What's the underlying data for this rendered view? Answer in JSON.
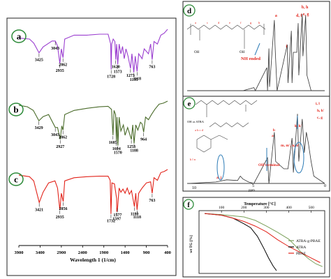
{
  "panel_labels": {
    "a": "a",
    "b": "b",
    "c": "c",
    "d": "d",
    "e": "e",
    "f": "f"
  },
  "chart_data": [
    {
      "type": "line",
      "panel": "a-c",
      "xlabel": "Wavelength 1 (1/cm)",
      "xlim": [
        3900,
        400
      ],
      "x_ticks": [
        "3900",
        "3400",
        "2900",
        "2400",
        "1900",
        "1400",
        "900",
        "400"
      ],
      "series": [
        {
          "name": "a",
          "color": "#9b3fd0",
          "points": [
            [
              3900,
              0.18
            ],
            [
              3650,
              0.2
            ],
            [
              3550,
              0.28
            ],
            [
              3425,
              0.48
            ],
            [
              3330,
              0.36
            ],
            [
              3120,
              0.24
            ],
            [
              3043,
              0.24
            ],
            [
              2990,
              0.34
            ],
            [
              2935,
              0.7
            ],
            [
              2900,
              0.4
            ],
            [
              2862,
              0.58
            ],
            [
              2820,
              0.2
            ],
            [
              2600,
              0.12
            ],
            [
              2300,
              0.12
            ],
            [
              2000,
              0.1
            ],
            [
              1800,
              0.1
            ],
            [
              1740,
              0.3
            ],
            [
              1728,
              0.82
            ],
            [
              1715,
              0.3
            ],
            [
              1680,
              0.2
            ],
            [
              1640,
              0.25
            ],
            [
              1620,
              0.62
            ],
            [
              1600,
              0.3
            ],
            [
              1573,
              0.72
            ],
            [
              1540,
              0.3
            ],
            [
              1500,
              0.5
            ],
            [
              1460,
              0.35
            ],
            [
              1420,
              0.6
            ],
            [
              1380,
              0.4
            ],
            [
              1330,
              0.55
            ],
            [
              1273,
              0.8
            ],
            [
              1240,
              0.5
            ],
            [
              1195,
              0.88
            ],
            [
              1160,
              0.55
            ],
            [
              1118,
              0.86
            ],
            [
              1080,
              0.5
            ],
            [
              1000,
              0.6
            ],
            [
              950,
              0.4
            ],
            [
              900,
              0.45
            ],
            [
              850,
              0.5
            ],
            [
              800,
              0.3
            ],
            [
              763,
              0.62
            ],
            [
              720,
              0.25
            ],
            [
              640,
              0.3
            ],
            [
              560,
              0.12
            ],
            [
              480,
              0.08
            ],
            [
              400,
              0.0
            ]
          ],
          "annotations": [
            {
              "label": "3425",
              "x": 3425
            },
            {
              "label": "3043",
              "x": 3043
            },
            {
              "label": "2935",
              "x": 2935
            },
            {
              "label": "2862",
              "x": 2862
            },
            {
              "label": "1728",
              "x": 1728
            },
            {
              "label": "1620",
              "x": 1620
            },
            {
              "label": "1573",
              "x": 1573
            },
            {
              "label": "1273",
              "x": 1273
            },
            {
              "label": "1195",
              "x": 1195
            },
            {
              "label": "1118",
              "x": 1118
            },
            {
              "label": "763",
              "x": 763
            }
          ]
        },
        {
          "name": "b",
          "color": "#4a6b2a",
          "points": [
            [
              3900,
              0.12
            ],
            [
              3700,
              0.15
            ],
            [
              3560,
              0.22
            ],
            [
              3429,
              0.42
            ],
            [
              3330,
              0.34
            ],
            [
              3200,
              0.3
            ],
            [
              3043,
              0.55
            ],
            [
              2990,
              0.55
            ],
            [
              2927,
              0.78
            ],
            [
              2890,
              0.52
            ],
            [
              2862,
              0.6
            ],
            [
              2820,
              0.3
            ],
            [
              2600,
              0.22
            ],
            [
              2300,
              0.18
            ],
            [
              2000,
              0.15
            ],
            [
              1800,
              0.14
            ],
            [
              1720,
              0.2
            ],
            [
              1685,
              0.7
            ],
            [
              1660,
              0.22
            ],
            [
              1625,
              0.3
            ],
            [
              1604,
              0.82
            ],
            [
              1590,
              0.35
            ],
            [
              1570,
              0.9
            ],
            [
              1540,
              0.35
            ],
            [
              1500,
              0.62
            ],
            [
              1440,
              0.5
            ],
            [
              1400,
              0.7
            ],
            [
              1340,
              0.55
            ],
            [
              1290,
              0.68
            ],
            [
              1253,
              0.78
            ],
            [
              1220,
              0.5
            ],
            [
              1188,
              0.86
            ],
            [
              1150,
              0.5
            ],
            [
              1100,
              0.6
            ],
            [
              1040,
              0.45
            ],
            [
              1000,
              0.48
            ],
            [
              964,
              0.64
            ],
            [
              920,
              0.35
            ],
            [
              850,
              0.4
            ],
            [
              780,
              0.3
            ],
            [
              700,
              0.2
            ],
            [
              600,
              0.1
            ],
            [
              500,
              0.08
            ],
            [
              400,
              0.04
            ]
          ],
          "annotations": [
            {
              "label": "3429",
              "x": 3429
            },
            {
              "label": "3043",
              "x": 3043
            },
            {
              "label": "2927",
              "x": 2927
            },
            {
              "label": "2862",
              "x": 2862
            },
            {
              "label": "1685",
              "x": 1685
            },
            {
              "label": "1604",
              "x": 1604
            },
            {
              "label": "1570",
              "x": 1570
            },
            {
              "label": "1253",
              "x": 1253
            },
            {
              "label": "1188",
              "x": 1188
            },
            {
              "label": "964",
              "x": 964
            }
          ]
        },
        {
          "name": "c",
          "color": "#e2231a",
          "points": [
            [
              3900,
              0.15
            ],
            [
              3650,
              0.18
            ],
            [
              3550,
              0.26
            ],
            [
              3421,
              0.68
            ],
            [
              3330,
              0.48
            ],
            [
              3200,
              0.3
            ],
            [
              3050,
              0.26
            ],
            [
              2990,
              0.4
            ],
            [
              2935,
              0.82
            ],
            [
              2900,
              0.5
            ],
            [
              2856,
              0.66
            ],
            [
              2820,
              0.26
            ],
            [
              2600,
              0.2
            ],
            [
              2300,
              0.18
            ],
            [
              2000,
              0.17
            ],
            [
              1800,
              0.17
            ],
            [
              1750,
              0.25
            ],
            [
              1732,
              0.9
            ],
            [
              1710,
              0.3
            ],
            [
              1650,
              0.32
            ],
            [
              1600,
              0.6
            ],
            [
              1597,
              0.86
            ],
            [
              1577,
              0.78
            ],
            [
              1540,
              0.4
            ],
            [
              1500,
              0.48
            ],
            [
              1450,
              0.42
            ],
            [
              1400,
              0.5
            ],
            [
              1350,
              0.4
            ],
            [
              1300,
              0.52
            ],
            [
              1250,
              0.45
            ],
            [
              1180,
              0.76
            ],
            [
              1150,
              0.5
            ],
            [
              1118,
              0.82
            ],
            [
              1080,
              0.5
            ],
            [
              1000,
              0.4
            ],
            [
              900,
              0.3
            ],
            [
              800,
              0.28
            ],
            [
              763,
              0.5
            ],
            [
              720,
              0.2
            ],
            [
              640,
              0.25
            ],
            [
              560,
              0.1
            ],
            [
              480,
              0.08
            ],
            [
              400,
              0.04
            ]
          ],
          "annotations": [
            {
              "label": "3421",
              "x": 3421
            },
            {
              "label": "2935",
              "x": 2935
            },
            {
              "label": "2856",
              "x": 2856
            },
            {
              "label": "1732",
              "x": 1732
            },
            {
              "label": "1597",
              "x": 1597
            },
            {
              "label": "1577",
              "x": 1577
            },
            {
              "label": "1180",
              "x": 1180
            },
            {
              "label": "1118",
              "x": 1118
            },
            {
              "label": "763",
              "x": 763
            }
          ]
        }
      ]
    },
    {
      "type": "line",
      "panel": "d",
      "xlabel": "",
      "x_ticks": [],
      "series": [
        {
          "name": "d",
          "color": "#333333",
          "points": [
            [
              10,
              0
            ],
            [
              6.0,
              0
            ],
            [
              5.2,
              0.04
            ],
            [
              5.1,
              0.0
            ],
            [
              4.25,
              0.3
            ],
            [
              4.2,
              0.0
            ],
            [
              4.1,
              0.55
            ],
            [
              4.05,
              0.05
            ],
            [
              3.7,
              0.92
            ],
            [
              3.65,
              0.6
            ],
            [
              3.5,
              0.0
            ],
            [
              2.75,
              0.6
            ],
            [
              2.7,
              0.1
            ],
            [
              2.45,
              0.78
            ],
            [
              2.4,
              0.1
            ],
            [
              2.3,
              0.5
            ],
            [
              2.05,
              0.5
            ],
            [
              1.95,
              0.88
            ],
            [
              1.9,
              0.2
            ],
            [
              1.65,
              1.0
            ],
            [
              1.6,
              0.45
            ],
            [
              1.4,
              0.98
            ],
            [
              1.3,
              0.2
            ],
            [
              1.0,
              0.0
            ],
            [
              0,
              0
            ]
          ]
        }
      ],
      "annotations": [
        "a",
        "i",
        "d, f",
        "b, h",
        "e, g",
        "NH ended"
      ]
    },
    {
      "type": "line",
      "panel": "e",
      "xlabel": "ppm",
      "x_ticks": [
        "10",
        "5"
      ],
      "series": [
        {
          "name": "e",
          "color": "#333333",
          "points": [
            [
              10,
              0
            ],
            [
              8,
              0.02
            ],
            [
              7.2,
              0.05
            ],
            [
              6.4,
              0.04
            ],
            [
              6.2,
              0.1
            ],
            [
              6.0,
              0.06
            ],
            [
              5.6,
              0.02
            ],
            [
              5.2,
              0.0
            ],
            [
              4.2,
              0.35
            ],
            [
              4.1,
              0.0
            ],
            [
              3.7,
              0.7
            ],
            [
              3.6,
              0.3
            ],
            [
              3.0,
              0.2
            ],
            [
              2.7,
              0.2
            ],
            [
              2.4,
              0.62
            ],
            [
              2.3,
              0.15
            ],
            [
              2.0,
              0.95
            ],
            [
              1.9,
              0.3
            ],
            [
              1.65,
              0.88
            ],
            [
              1.5,
              0.42
            ],
            [
              1.35,
              0.7
            ],
            [
              1.2,
              0.55
            ],
            [
              1.0,
              0.3
            ],
            [
              0.8,
              0.1
            ],
            [
              0,
              0
            ]
          ]
        }
      ],
      "annotations": [
        "i, l",
        "h, h'",
        "b",
        "a",
        "c, g",
        "k, k'",
        "m, m', n, n'",
        "a, j",
        "OH terminal",
        "OH or ATRA"
      ]
    },
    {
      "type": "line",
      "panel": "f",
      "xlabel": "Temperature [°C]",
      "ylabel": "wt TG [%]",
      "xlim": [
        0,
        560
      ],
      "ylim": [
        -105,
        5
      ],
      "x_ticks": [
        "100",
        "200",
        "300",
        "400",
        "500"
      ],
      "legend": "right",
      "series": [
        {
          "name": "ATRA-g-PBAE",
          "color": "#7ba05b",
          "points": [
            [
              25,
              0
            ],
            [
              100,
              -2
            ],
            [
              150,
              -4
            ],
            [
              200,
              -6
            ],
            [
              250,
              -12
            ],
            [
              300,
              -22
            ],
            [
              350,
              -33
            ],
            [
              400,
              -45
            ],
            [
              430,
              -57
            ],
            [
              460,
              -70
            ],
            [
              490,
              -80
            ],
            [
              520,
              -88
            ],
            [
              550,
              -93
            ]
          ]
        },
        {
          "name": "ATRA",
          "color": "#000000",
          "points": [
            [
              25,
              0
            ],
            [
              100,
              -3
            ],
            [
              150,
              -8
            ],
            [
              200,
              -18
            ],
            [
              230,
              -25
            ],
            [
              260,
              -40
            ],
            [
              290,
              -62
            ],
            [
              310,
              -78
            ],
            [
              330,
              -92
            ],
            [
              345,
              -100
            ]
          ]
        },
        {
          "name": "PBAE",
          "color": "#e2231a",
          "points": [
            [
              25,
              0
            ],
            [
              100,
              -3
            ],
            [
              150,
              -8
            ],
            [
              200,
              -14
            ],
            [
              250,
              -22
            ],
            [
              300,
              -32
            ],
            [
              350,
              -46
            ],
            [
              400,
              -58
            ],
            [
              450,
              -68
            ],
            [
              500,
              -78
            ],
            [
              540,
              -86
            ]
          ]
        }
      ]
    }
  ]
}
